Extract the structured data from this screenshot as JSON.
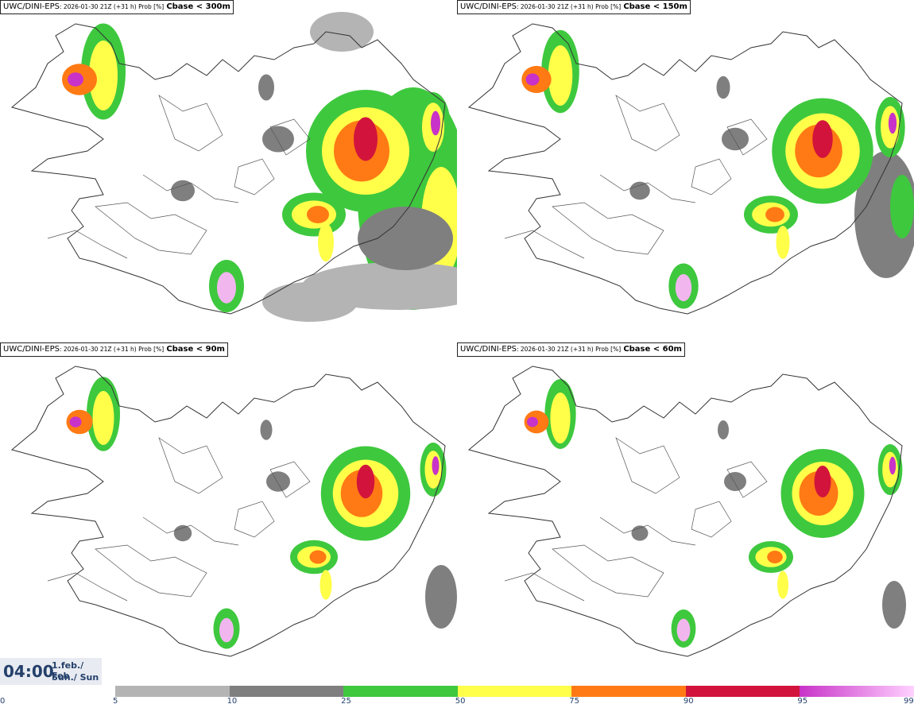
{
  "panels": [
    {
      "model": "UWC/DINI-EPS",
      "meta": ": 2026-01-30 21Z (+31 h) Prob [%]",
      "param": "Cbase < 300m"
    },
    {
      "model": "UWC/DINI-EPS",
      "meta": ": 2026-01-30 21Z (+31 h) Prob [%]",
      "param": "Cbase < 150m"
    },
    {
      "model": "UWC/DINI-EPS",
      "meta": ": 2026-01-30 21Z (+31 h) Prob [%]",
      "param": "Cbase < 90m"
    },
    {
      "model": "UWC/DINI-EPS",
      "meta": ": 2026-01-30 21Z (+31 h) Prob [%]",
      "param": "Cbase < 60m"
    }
  ],
  "timestamp": {
    "time": "04:00",
    "date_line1": "1.feb./ Feb",
    "date_line2": "Sun./ Sun"
  },
  "legend": {
    "ticks": [
      "0",
      "5",
      "10",
      "25",
      "50",
      "75",
      "90",
      "95",
      "99"
    ],
    "bins": [
      {
        "from": 0,
        "to": 5,
        "color": "#ffffff"
      },
      {
        "from": 5,
        "to": 10,
        "color": "#b4b4b4"
      },
      {
        "from": 10,
        "to": 25,
        "color": "#7f7f7f"
      },
      {
        "from": 25,
        "to": 50,
        "color": "#3ec83e"
      },
      {
        "from": 50,
        "to": 75,
        "color": "#ffff4a"
      },
      {
        "from": 75,
        "to": 90,
        "color": "#ff7a14"
      },
      {
        "from": 90,
        "to": 95,
        "color": "#d2143c"
      },
      {
        "from": 95,
        "to": 99,
        "color": "#c832c8",
        "to_color": "#ffd2ff"
      }
    ]
  }
}
